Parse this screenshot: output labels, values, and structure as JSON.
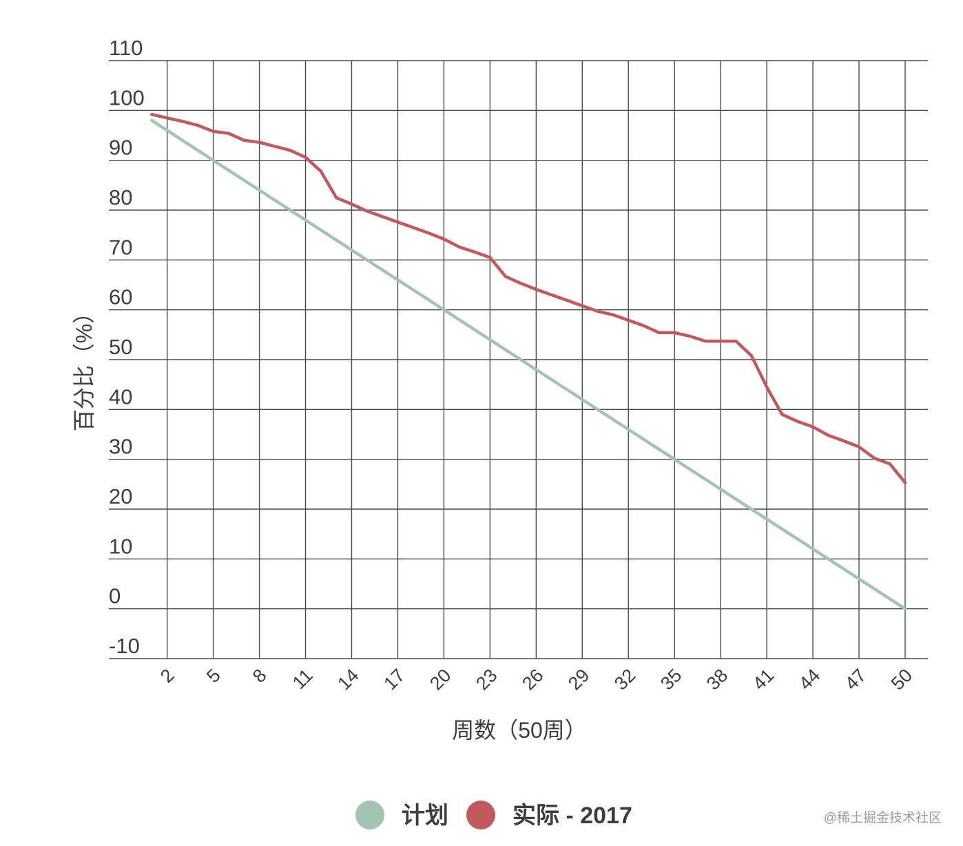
{
  "chart_data": {
    "type": "line",
    "title": "",
    "xlabel": "周数（50周）",
    "ylabel": "百分比（%）",
    "ylim": [
      -10,
      110
    ],
    "xlim": [
      0,
      50
    ],
    "yticks": [
      "110",
      "100",
      "90",
      "80",
      "70",
      "60",
      "50",
      "40",
      "30",
      "20",
      "10",
      "0",
      "-10"
    ],
    "xticks": [
      "2",
      "5",
      "8",
      "11",
      "14",
      "17",
      "20",
      "23",
      "26",
      "29",
      "32",
      "35",
      "38",
      "41",
      "44",
      "47",
      "50"
    ],
    "grid": true,
    "legend_position": "bottom",
    "series": [
      {
        "name": "计划",
        "color": "#a3c4b2",
        "x": [
          1,
          50
        ],
        "y": [
          98,
          0
        ]
      },
      {
        "name": "实际 - 2017",
        "color": "#c05a5c",
        "x": [
          1,
          2,
          3,
          4,
          5,
          6,
          7,
          8,
          9,
          10,
          11,
          12,
          13,
          14,
          15,
          16,
          17,
          18,
          19,
          20,
          21,
          22,
          23,
          24,
          25,
          26,
          27,
          28,
          29,
          30,
          31,
          32,
          33,
          34,
          35,
          36,
          37,
          38,
          39,
          40,
          41,
          42,
          43,
          44,
          45,
          46,
          47,
          48,
          49,
          50
        ],
        "y": [
          99.2,
          98.5,
          97.8,
          97,
          95.8,
          95.4,
          94,
          93.6,
          92.8,
          92,
          90.6,
          87.8,
          82.5,
          81.2,
          79.8,
          78.7,
          77.6,
          76.5,
          75.4,
          74.2,
          72.6,
          71.6,
          70.5,
          66.7,
          65.3,
          64.1,
          63,
          61.9,
          60.8,
          59.7,
          59,
          57.9,
          56.8,
          55.4,
          55.4,
          54.7,
          53.7,
          53.7,
          53.7,
          50.8,
          44.5,
          39,
          37.6,
          36.5,
          34.8,
          33.7,
          32.5,
          30.2,
          29.1,
          25.3
        ]
      }
    ]
  },
  "legend": {
    "items": [
      {
        "label": "计划",
        "color": "#a3c4b2"
      },
      {
        "label": "实际 - 2017",
        "color": "#c05a5c"
      }
    ]
  },
  "watermark": "@稀土掘金技术社区",
  "colors": {
    "grid": "#4a4a4a",
    "text": "#3d3d3d"
  }
}
